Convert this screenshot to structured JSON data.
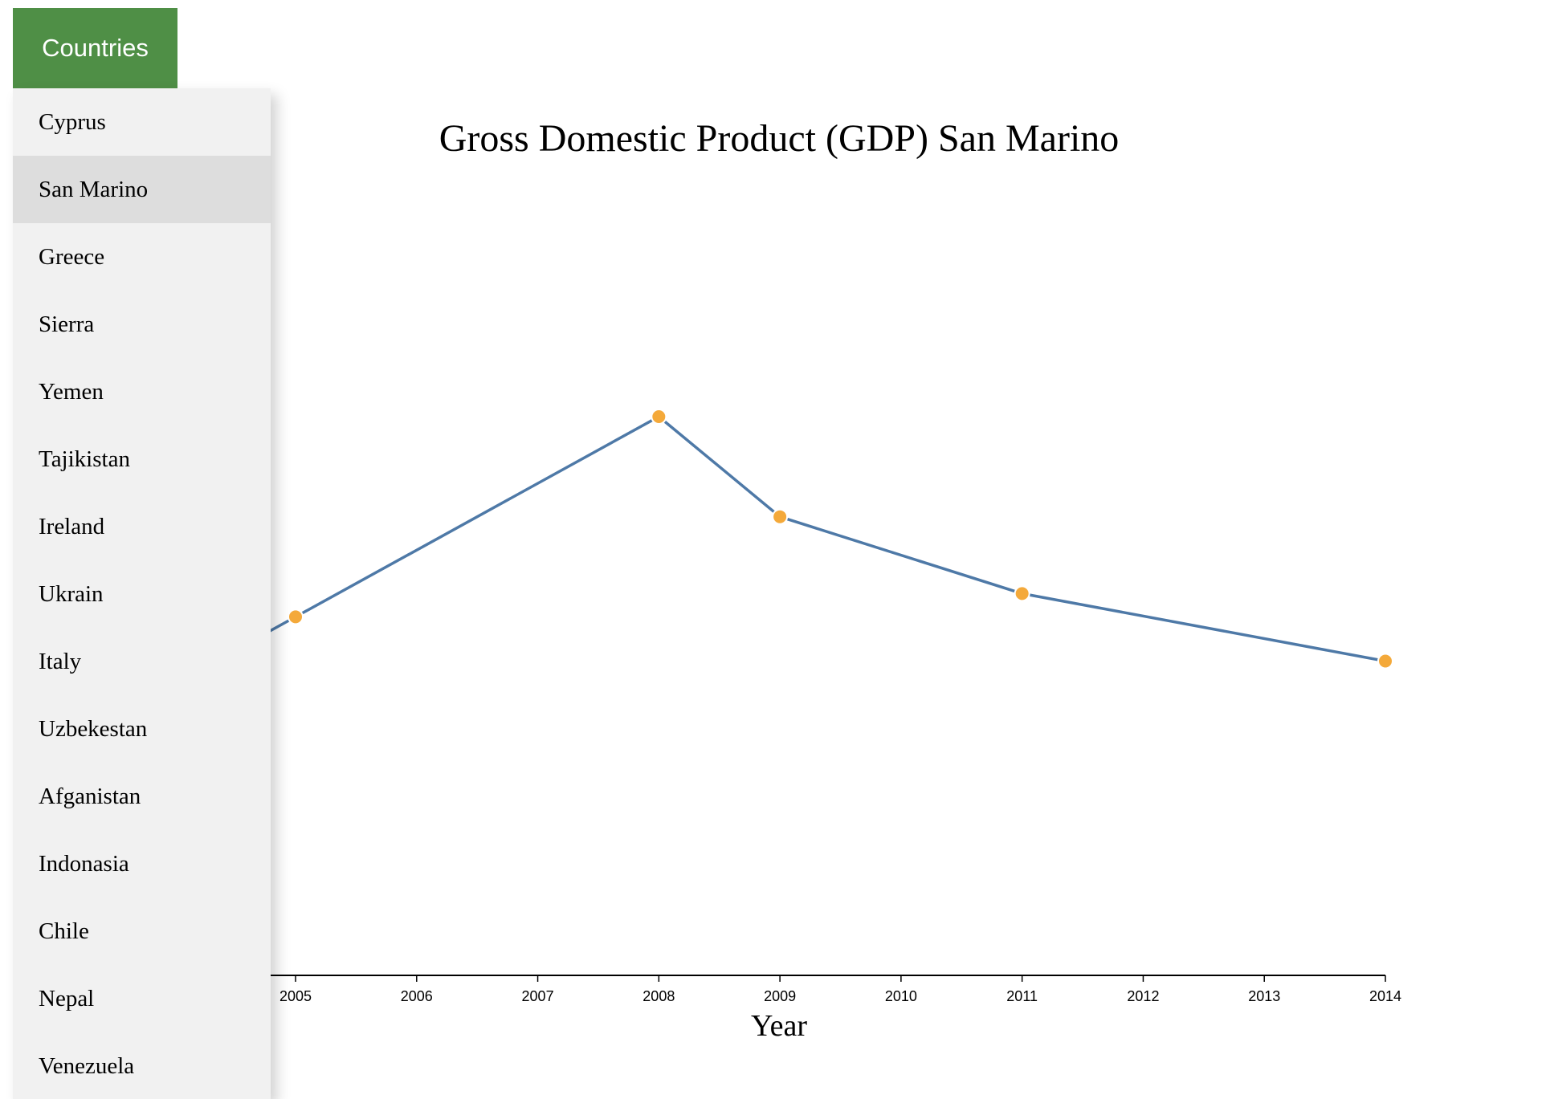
{
  "menu": {
    "button_label": "Countries",
    "items": [
      {
        "label": "Cyprus",
        "active": false
      },
      {
        "label": "San Marino",
        "active": true
      },
      {
        "label": "Greece",
        "active": false
      },
      {
        "label": "Sierra",
        "active": false
      },
      {
        "label": "Yemen",
        "active": false
      },
      {
        "label": "Tajikistan",
        "active": false
      },
      {
        "label": "Ireland",
        "active": false
      },
      {
        "label": "Ukrain",
        "active": false
      },
      {
        "label": "Italy",
        "active": false
      },
      {
        "label": "Uzbekestan",
        "active": false
      },
      {
        "label": "Afganistan",
        "active": false
      },
      {
        "label": "Indonasia",
        "active": false
      },
      {
        "label": "Chile",
        "active": false
      },
      {
        "label": "Nepal",
        "active": false
      },
      {
        "label": "Venezuela",
        "active": false
      }
    ]
  },
  "colors": {
    "button_bg": "#4f8f46",
    "menu_bg": "#f1f1f1",
    "menu_active_bg": "#dddddd",
    "line": "#4e79a7",
    "point": "#f4a93a"
  },
  "chart_data": {
    "type": "line",
    "title": "Gross Domestic Product (GDP) San Marino",
    "xlabel": "Year",
    "ylabel": "",
    "x_ticks": [
      2005,
      2006,
      2007,
      2008,
      2009,
      2010,
      2011,
      2012,
      2013,
      2014
    ],
    "x": [
      2005,
      2008,
      2009,
      2011,
      2014
    ],
    "y": [
      1.54,
      2.4,
      1.97,
      1.64,
      1.35
    ],
    "xlim": [
      2005,
      2014
    ],
    "ylim": [
      0,
      3.5
    ],
    "grid": false,
    "legend": "none",
    "clipped_left_segment": true
  }
}
